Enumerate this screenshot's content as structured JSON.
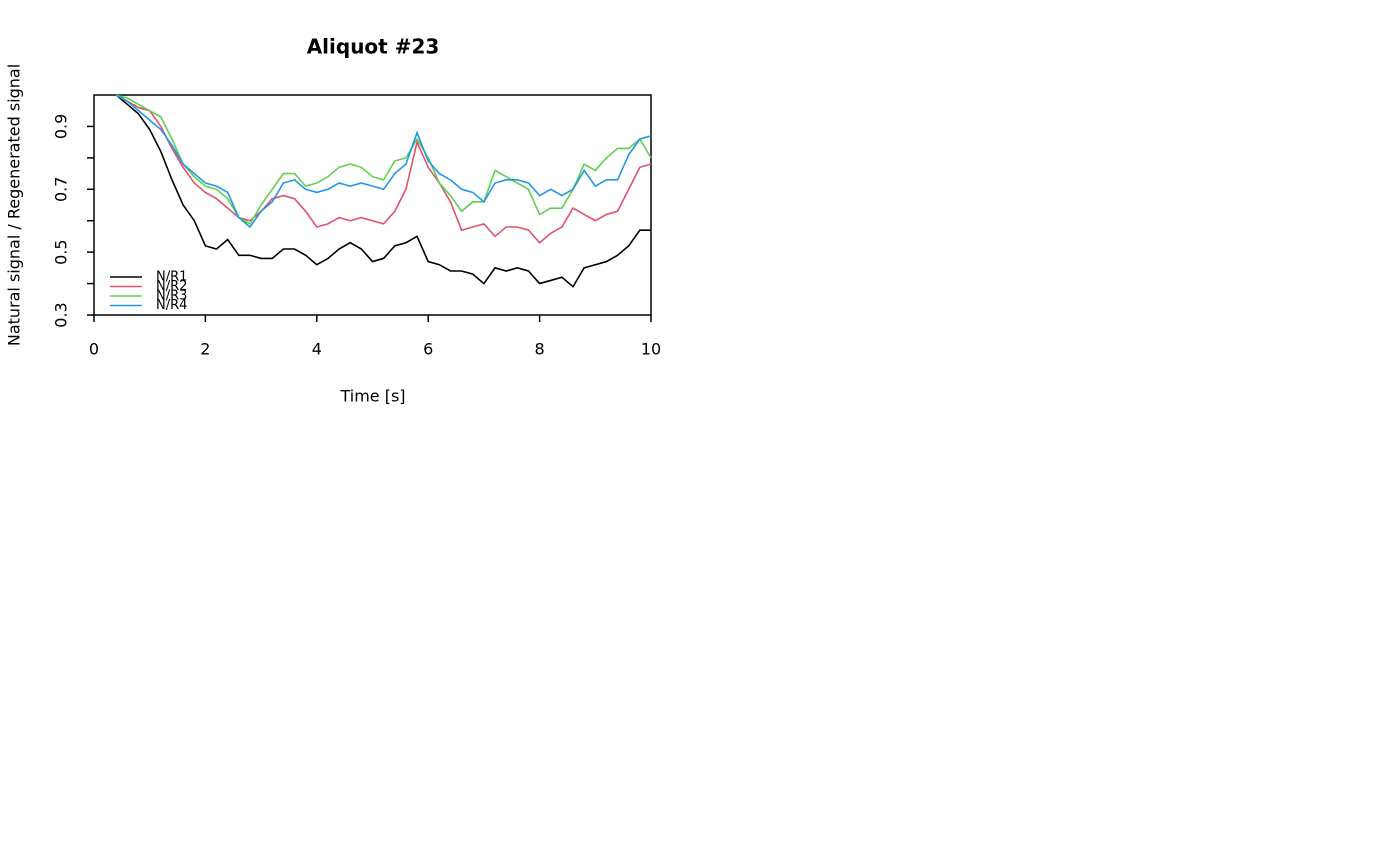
{
  "chart_data": {
    "type": "line",
    "title": "Aliquot #23",
    "x_label": "Time [s]",
    "y_label": "Natural signal / Regenerated signal",
    "x": [
      0.4,
      0.6,
      0.8,
      1.0,
      1.2,
      1.4,
      1.6,
      1.8,
      2.0,
      2.2,
      2.4,
      2.6,
      2.8,
      3.0,
      3.2,
      3.4,
      3.6,
      3.8,
      4.0,
      4.2,
      4.4,
      4.6,
      4.8,
      5.0,
      5.2,
      5.4,
      5.6,
      5.8,
      6.0,
      6.2,
      6.4,
      6.6,
      6.8,
      7.0,
      7.2,
      7.4,
      7.6,
      7.8,
      8.0,
      8.2,
      8.4,
      8.6,
      8.8,
      9.0,
      9.2,
      9.4,
      9.6,
      9.8,
      10.0
    ],
    "series": [
      {
        "name": "N/R1",
        "color": "#000000",
        "values": [
          1.0,
          0.97,
          0.94,
          0.89,
          0.82,
          0.73,
          0.65,
          0.6,
          0.52,
          0.51,
          0.54,
          0.49,
          0.49,
          0.48,
          0.48,
          0.51,
          0.51,
          0.49,
          0.46,
          0.48,
          0.51,
          0.53,
          0.51,
          0.47,
          0.48,
          0.52,
          0.53,
          0.55,
          0.47,
          0.46,
          0.44,
          0.44,
          0.43,
          0.4,
          0.45,
          0.44,
          0.45,
          0.44,
          0.4,
          0.41,
          0.42,
          0.39,
          0.45,
          0.46,
          0.47,
          0.49,
          0.52,
          0.57,
          0.57
        ]
      },
      {
        "name": "N/R2",
        "color": "#DF536B",
        "values": [
          1.0,
          0.98,
          0.96,
          0.95,
          0.9,
          0.83,
          0.77,
          0.72,
          0.69,
          0.67,
          0.64,
          0.61,
          0.6,
          0.63,
          0.67,
          0.68,
          0.67,
          0.63,
          0.58,
          0.59,
          0.61,
          0.6,
          0.61,
          0.6,
          0.59,
          0.63,
          0.7,
          0.85,
          0.77,
          0.72,
          0.66,
          0.57,
          0.58,
          0.59,
          0.55,
          0.58,
          0.58,
          0.57,
          0.53,
          0.56,
          0.58,
          0.64,
          0.62,
          0.6,
          0.62,
          0.63,
          0.7,
          0.77,
          0.78
        ]
      },
      {
        "name": "N/R3",
        "color": "#61D04F",
        "values": [
          1.0,
          0.99,
          0.97,
          0.95,
          0.93,
          0.86,
          0.78,
          0.74,
          0.71,
          0.7,
          0.67,
          0.61,
          0.59,
          0.65,
          0.7,
          0.75,
          0.75,
          0.71,
          0.72,
          0.74,
          0.77,
          0.78,
          0.77,
          0.74,
          0.73,
          0.79,
          0.8,
          0.86,
          0.8,
          0.72,
          0.68,
          0.63,
          0.66,
          0.66,
          0.76,
          0.74,
          0.72,
          0.7,
          0.62,
          0.64,
          0.64,
          0.7,
          0.78,
          0.76,
          0.8,
          0.83,
          0.83,
          0.86,
          0.8
        ]
      },
      {
        "name": "N/R4",
        "color": "#2297E6",
        "values": [
          1.0,
          0.98,
          0.95,
          0.92,
          0.89,
          0.84,
          0.78,
          0.75,
          0.72,
          0.71,
          0.69,
          0.61,
          0.58,
          0.63,
          0.66,
          0.72,
          0.73,
          0.7,
          0.69,
          0.7,
          0.72,
          0.71,
          0.72,
          0.71,
          0.7,
          0.75,
          0.78,
          0.88,
          0.79,
          0.75,
          0.73,
          0.7,
          0.69,
          0.66,
          0.72,
          0.73,
          0.73,
          0.72,
          0.68,
          0.7,
          0.68,
          0.7,
          0.76,
          0.71,
          0.73,
          0.73,
          0.81,
          0.86,
          0.87
        ]
      }
    ],
    "xlim": [
      0,
      10
    ],
    "xticks": [
      0,
      2,
      4,
      6,
      8,
      10
    ],
    "ylim": [
      0.3,
      1.0
    ],
    "yticks": [
      0.3,
      0.5,
      0.7,
      0.9
    ],
    "minor_yticks": [
      0.4,
      0.6,
      0.8
    ],
    "hline": 1.0,
    "legend": "bottomleft"
  }
}
